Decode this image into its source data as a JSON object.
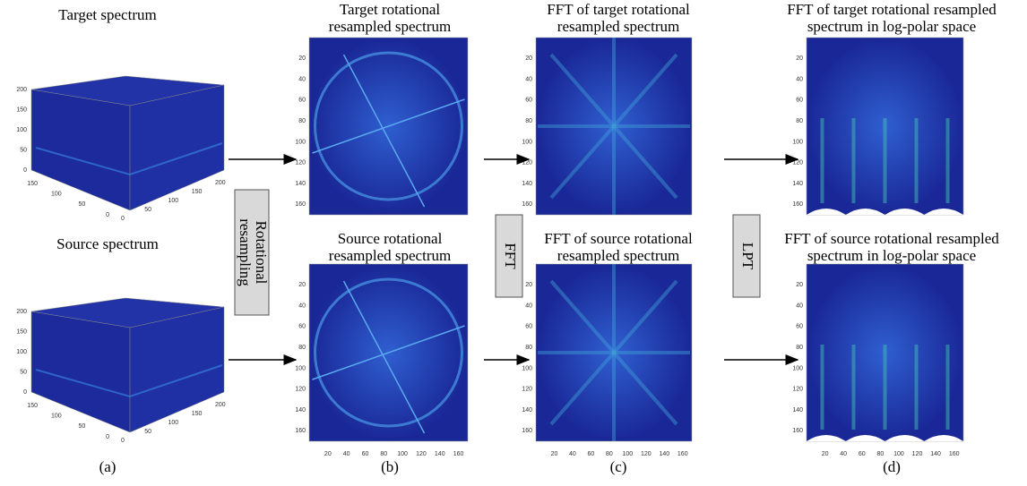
{
  "panels": [
    {
      "caption": "(a)",
      "plots": [
        {
          "title": [
            "Target spectrum"
          ],
          "z_ticks": [
            0,
            50,
            100,
            150,
            200
          ],
          "left_ticks": [
            150,
            100,
            50,
            0
          ],
          "right_ticks": [
            0,
            50,
            100,
            150,
            200
          ]
        },
        {
          "title": [
            "Source spectrum"
          ],
          "z_ticks": [
            0,
            50,
            100,
            150,
            200
          ],
          "left_ticks": [
            150,
            100,
            50,
            0
          ],
          "right_ticks": [
            0,
            50,
            100,
            150,
            200
          ]
        }
      ]
    },
    {
      "caption": "(b)",
      "plots": [
        {
          "title": [
            "Target rotational",
            "resampled spectrum"
          ],
          "y_ticks": [
            20,
            40,
            60,
            80,
            100,
            120,
            140,
            160
          ]
        },
        {
          "title": [
            "Source rotational",
            "resampled spectrum"
          ],
          "y_ticks": [
            20,
            40,
            60,
            80,
            100,
            120,
            140,
            160
          ],
          "x_ticks": [
            20,
            40,
            60,
            80,
            100,
            120,
            140,
            160
          ]
        }
      ]
    },
    {
      "caption": "(c)",
      "plots": [
        {
          "title": [
            "FFT of target rotational",
            "resampled spectrum"
          ],
          "y_ticks": [
            20,
            40,
            60,
            80,
            100,
            120,
            140,
            160
          ]
        },
        {
          "title": [
            "FFT of source rotational",
            "resampled spectrum"
          ],
          "y_ticks": [
            20,
            40,
            60,
            80,
            100,
            120,
            140,
            160
          ],
          "x_ticks": [
            20,
            40,
            60,
            80,
            100,
            120,
            140,
            160
          ]
        }
      ]
    },
    {
      "caption": "(d)",
      "plots": [
        {
          "title": [
            "FFT of target rotational resampled",
            "spectrum in log-polar space"
          ],
          "y_ticks": [
            20,
            40,
            60,
            80,
            100,
            120,
            140,
            160
          ]
        },
        {
          "title": [
            "FFT of source rotational resampled",
            "spectrum in log-polar space"
          ],
          "y_ticks": [
            20,
            40,
            60,
            80,
            100,
            120,
            140,
            160
          ],
          "x_ticks": [
            20,
            40,
            60,
            80,
            100,
            120,
            140,
            160
          ]
        }
      ]
    }
  ],
  "steps": [
    [
      "Rotational",
      "resampling"
    ],
    [
      "FFT"
    ],
    [
      "LPT"
    ]
  ]
}
